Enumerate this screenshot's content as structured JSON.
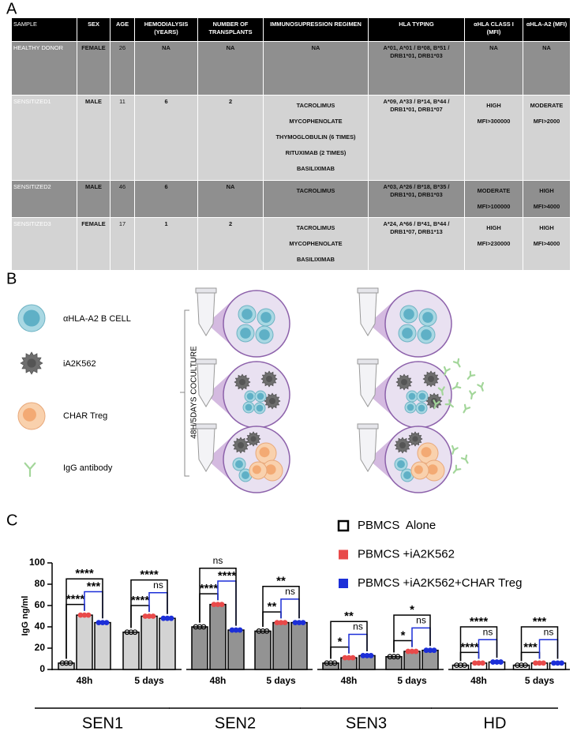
{
  "panels": {
    "a": "A",
    "b": "B",
    "c": "C"
  },
  "table": {
    "headers": [
      "SAMPLE",
      "SEX",
      "AGE",
      "HEMODIALYSIS (YEARS)",
      "NUMBER OF TRANSPLANTS",
      "IMMUNOSUPRESSION REGIMEN",
      "HLA TYPING",
      "αHLA CLASS I (MFI)",
      "αHLA-A2 (MFI)"
    ],
    "rows": [
      [
        "HEALTHY DONOR",
        "FEMALE",
        26,
        "NA",
        "NA",
        "NA",
        "A*01, A*01 / B*08, B*51 / DRB1*01, DRB1*03",
        "NA",
        "NA"
      ],
      [
        "SENSITIZED1",
        "MALE",
        11,
        6,
        2,
        [
          "TACROLIMUS",
          "MYCOPHENOLATE",
          "THYMOGLOBULIN (6 TIMES)",
          "RITUXIMAB (2 TIMES)",
          "BASILIXIMAB"
        ],
        "A*09, A*33 / B*14, B*44 / DRB1*01, DRB1*07",
        [
          "HIGH",
          "MFI>300000"
        ],
        [
          "MODERATE",
          "MFI>2000"
        ]
      ],
      [
        "SENSITIZED2",
        "MALE",
        46,
        6,
        "NA",
        [
          "TACROLIMUS"
        ],
        "A*03, A*26 / B*18, B*35 / DRB1*01, DRB1*03",
        [
          "MODERATE",
          "MFI>100000"
        ],
        [
          "HIGH",
          "MFI>4000"
        ]
      ],
      [
        "SENSITIZED3",
        "FEMALE",
        17,
        1,
        2,
        [
          "TACROLIMUS",
          "MYCOPHENOLATE",
          "BASILIXIMAB"
        ],
        "A*24, A*66 / B*41, B*44 / DRB1*07, DRB1*13",
        [
          "HIGH",
          "MFI>230000"
        ],
        [
          "HIGH",
          "MFI>4000"
        ]
      ]
    ]
  },
  "diagram": {
    "legend": [
      "αHLA-A2 B CELL",
      "iA2K562",
      "CHAR Treg",
      "IgG antibody"
    ],
    "coculture_label": "48H/5DAYS COCULTURE"
  },
  "chart_data": {
    "type": "bar",
    "ylabel": "IgG ng/ml",
    "ylim": [
      0,
      100
    ],
    "yticks": [
      0,
      20,
      40,
      60,
      80,
      100
    ],
    "categories": [
      "48h",
      "5 days",
      "48h",
      "5 days",
      "48h",
      "5 days",
      "48h",
      "5 days"
    ],
    "groups": [
      {
        "name": "SEN1",
        "fill": "#d3d3d3",
        "categories": [
          "48h",
          "5 days"
        ]
      },
      {
        "name": "SEN2",
        "fill": "#939393",
        "categories": [
          "48h",
          "5 days"
        ]
      },
      {
        "name": "SEN3",
        "fill": "#9a9a9a",
        "categories": [
          "48h",
          "5 days"
        ]
      },
      {
        "name": "HD",
        "fill": "#ffffff",
        "categories": [
          "48h",
          "5 days"
        ]
      }
    ],
    "series": [
      {
        "name": "PBMCS  Alone",
        "color": "#000000",
        "values": [
          6,
          35,
          40,
          36,
          6,
          12,
          4,
          4
        ]
      },
      {
        "name": "PBMCS +iA2K562",
        "color": "#e84a4a",
        "values": [
          51,
          50,
          61,
          44,
          11,
          17,
          6,
          6
        ]
      },
      {
        "name": "PBMCS +iA2K562+CHAR Treg",
        "color": "#1c2fd8",
        "values": [
          44,
          48,
          37,
          44,
          13,
          18,
          7,
          6
        ]
      }
    ],
    "comparisons": [
      {
        "category": 0,
        "from": 0,
        "to": 1,
        "label": "****",
        "color": "#000000"
      },
      {
        "category": 0,
        "from": 1,
        "to": 2,
        "label": "***",
        "color": "#1c2fd8"
      },
      {
        "category": 0,
        "from": 0,
        "to": 2,
        "label": "****",
        "color": "#000000"
      },
      {
        "category": 1,
        "from": 0,
        "to": 1,
        "label": "****",
        "color": "#000000"
      },
      {
        "category": 1,
        "from": 1,
        "to": 2,
        "label": "ns",
        "color": "#1c2fd8"
      },
      {
        "category": 1,
        "from": 0,
        "to": 2,
        "label": "****",
        "color": "#000000"
      },
      {
        "category": 2,
        "from": 0,
        "to": 1,
        "label": "****",
        "color": "#000000"
      },
      {
        "category": 2,
        "from": 1,
        "to": 2,
        "label": "****",
        "color": "#1c2fd8"
      },
      {
        "category": 2,
        "from": 0,
        "to": 2,
        "label": "ns",
        "color": "#000000"
      },
      {
        "category": 3,
        "from": 0,
        "to": 1,
        "label": "**",
        "color": "#000000"
      },
      {
        "category": 3,
        "from": 1,
        "to": 2,
        "label": "ns",
        "color": "#1c2fd8"
      },
      {
        "category": 3,
        "from": 0,
        "to": 2,
        "label": "**",
        "color": "#000000"
      },
      {
        "category": 4,
        "from": 0,
        "to": 1,
        "label": "*",
        "color": "#000000"
      },
      {
        "category": 4,
        "from": 1,
        "to": 2,
        "label": "ns",
        "color": "#1c2fd8"
      },
      {
        "category": 4,
        "from": 0,
        "to": 2,
        "label": "**",
        "color": "#000000"
      },
      {
        "category": 5,
        "from": 0,
        "to": 1,
        "label": "*",
        "color": "#000000"
      },
      {
        "category": 5,
        "from": 1,
        "to": 2,
        "label": "ns",
        "color": "#1c2fd8"
      },
      {
        "category": 5,
        "from": 0,
        "to": 2,
        "label": "*",
        "color": "#000000"
      },
      {
        "category": 6,
        "from": 0,
        "to": 1,
        "label": "****",
        "color": "#000000"
      },
      {
        "category": 6,
        "from": 1,
        "to": 2,
        "label": "ns",
        "color": "#1c2fd8"
      },
      {
        "category": 6,
        "from": 0,
        "to": 2,
        "label": "****",
        "color": "#000000"
      },
      {
        "category": 7,
        "from": 0,
        "to": 1,
        "label": "***",
        "color": "#000000"
      },
      {
        "category": 7,
        "from": 1,
        "to": 2,
        "label": "ns",
        "color": "#1c2fd8"
      },
      {
        "category": 7,
        "from": 0,
        "to": 2,
        "label": "***",
        "color": "#000000"
      }
    ]
  }
}
